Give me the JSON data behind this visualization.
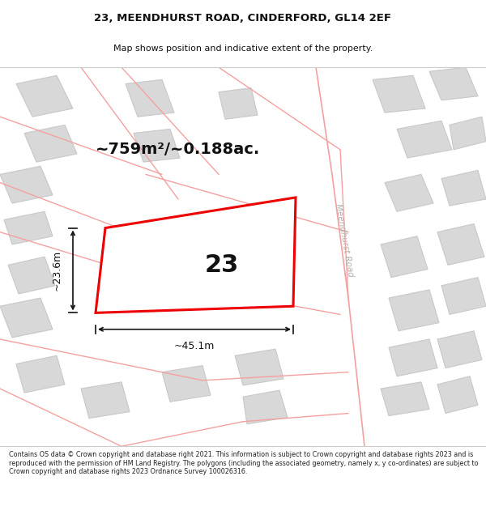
{
  "title_line1": "23, MEENDHURST ROAD, CINDERFORD, GL14 2EF",
  "title_line2": "Map shows position and indicative extent of the property.",
  "area_text": "~759m²/~0.188ac.",
  "number_label": "23",
  "dim_width": "~45.1m",
  "dim_height": "~23.6m",
  "road_label": "Meendhurst Road",
  "footer_text": "Contains OS data © Crown copyright and database right 2021. This information is subject to Crown copyright and database rights 2023 and is reproduced with the permission of HM Land Registry. The polygons (including the associated geometry, namely x, y co-ordinates) are subject to Crown copyright and database rights 2023 Ordnance Survey 100026316.",
  "map_bg": "#f0f0f0",
  "building_fill": "#d8d8d8",
  "building_edge": "#c8c8c8",
  "road_line_color": "#f5a0a0",
  "highlight_color": "#ee0000",
  "dim_color": "#111111",
  "title_color": "#111111",
  "road_label_color": "#b0b0b0",
  "title_fontsize": 9.5,
  "subtitle_fontsize": 8.0,
  "area_fontsize": 14,
  "number_fontsize": 22,
  "dim_fontsize": 9,
  "road_label_fontsize": 7.5,
  "footer_fontsize": 5.8
}
